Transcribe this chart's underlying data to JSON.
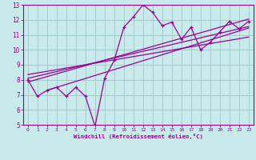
{
  "xlabel": "Windchill (Refroidissement éolien,°C)",
  "xlim": [
    -0.5,
    23.5
  ],
  "ylim": [
    5,
    13
  ],
  "xticks": [
    0,
    1,
    2,
    3,
    4,
    5,
    6,
    7,
    8,
    9,
    10,
    11,
    12,
    13,
    14,
    15,
    16,
    17,
    18,
    19,
    20,
    21,
    22,
    23
  ],
  "yticks": [
    5,
    6,
    7,
    8,
    9,
    10,
    11,
    12,
    13
  ],
  "bg_color": "#c8eaea",
  "line_color": "#990099",
  "grid_color": "#a0cccc",
  "line_data": [
    [
      0,
      8.0
    ],
    [
      1,
      6.9
    ],
    [
      2,
      7.3
    ],
    [
      3,
      7.5
    ],
    [
      4,
      6.9
    ],
    [
      5,
      7.5
    ],
    [
      6,
      6.9
    ],
    [
      7,
      4.9
    ],
    [
      8,
      8.1
    ],
    [
      9,
      9.3
    ],
    [
      10,
      11.5
    ],
    [
      11,
      12.2
    ],
    [
      12,
      13.0
    ],
    [
      13,
      12.5
    ],
    [
      14,
      11.6
    ],
    [
      15,
      11.85
    ],
    [
      16,
      10.7
    ],
    [
      17,
      11.5
    ],
    [
      18,
      10.0
    ],
    [
      19,
      10.5
    ],
    [
      20,
      11.2
    ],
    [
      21,
      11.9
    ],
    [
      22,
      11.4
    ],
    [
      23,
      11.9
    ]
  ],
  "regression_lines": [
    [
      [
        0,
        7.85
      ],
      [
        23,
        12.05
      ]
    ],
    [
      [
        0,
        8.1
      ],
      [
        23,
        11.55
      ]
    ],
    [
      [
        0,
        8.35
      ],
      [
        23,
        10.85
      ]
    ],
    [
      [
        2,
        7.3
      ],
      [
        23,
        11.45
      ]
    ]
  ]
}
